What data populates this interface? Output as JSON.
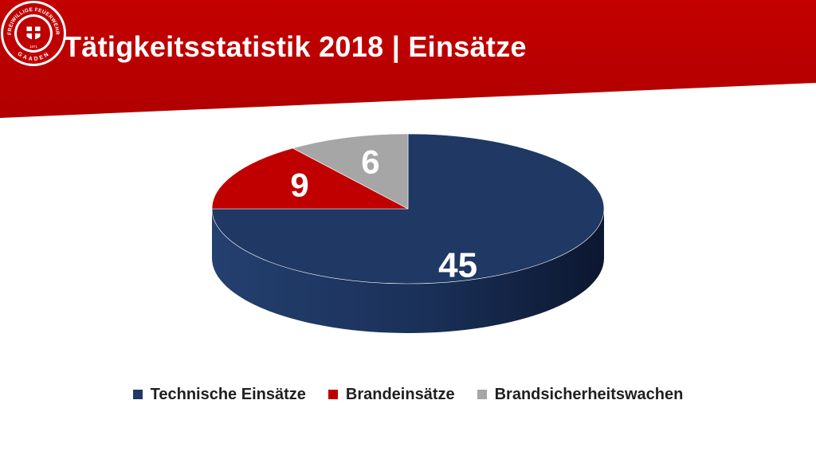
{
  "header": {
    "title": "Tätigkeitsstatistik 2018 | Einsätze",
    "color": "#C00000"
  },
  "logo": {
    "text_top": "FREIWILLIGE FEUERWEHR",
    "text_bottom": "GAADEN",
    "year": "1871"
  },
  "chart_data": {
    "type": "pie",
    "categories": [
      "Technische Einsätze",
      "Brandeinsätze",
      "Brandsicherheitswachen"
    ],
    "values": [
      45,
      9,
      6
    ],
    "data_labels": [
      "45",
      "9",
      "6"
    ],
    "colors": [
      "#1F3864",
      "#C00000",
      "#A6A6A6"
    ],
    "legend": "bottom"
  }
}
